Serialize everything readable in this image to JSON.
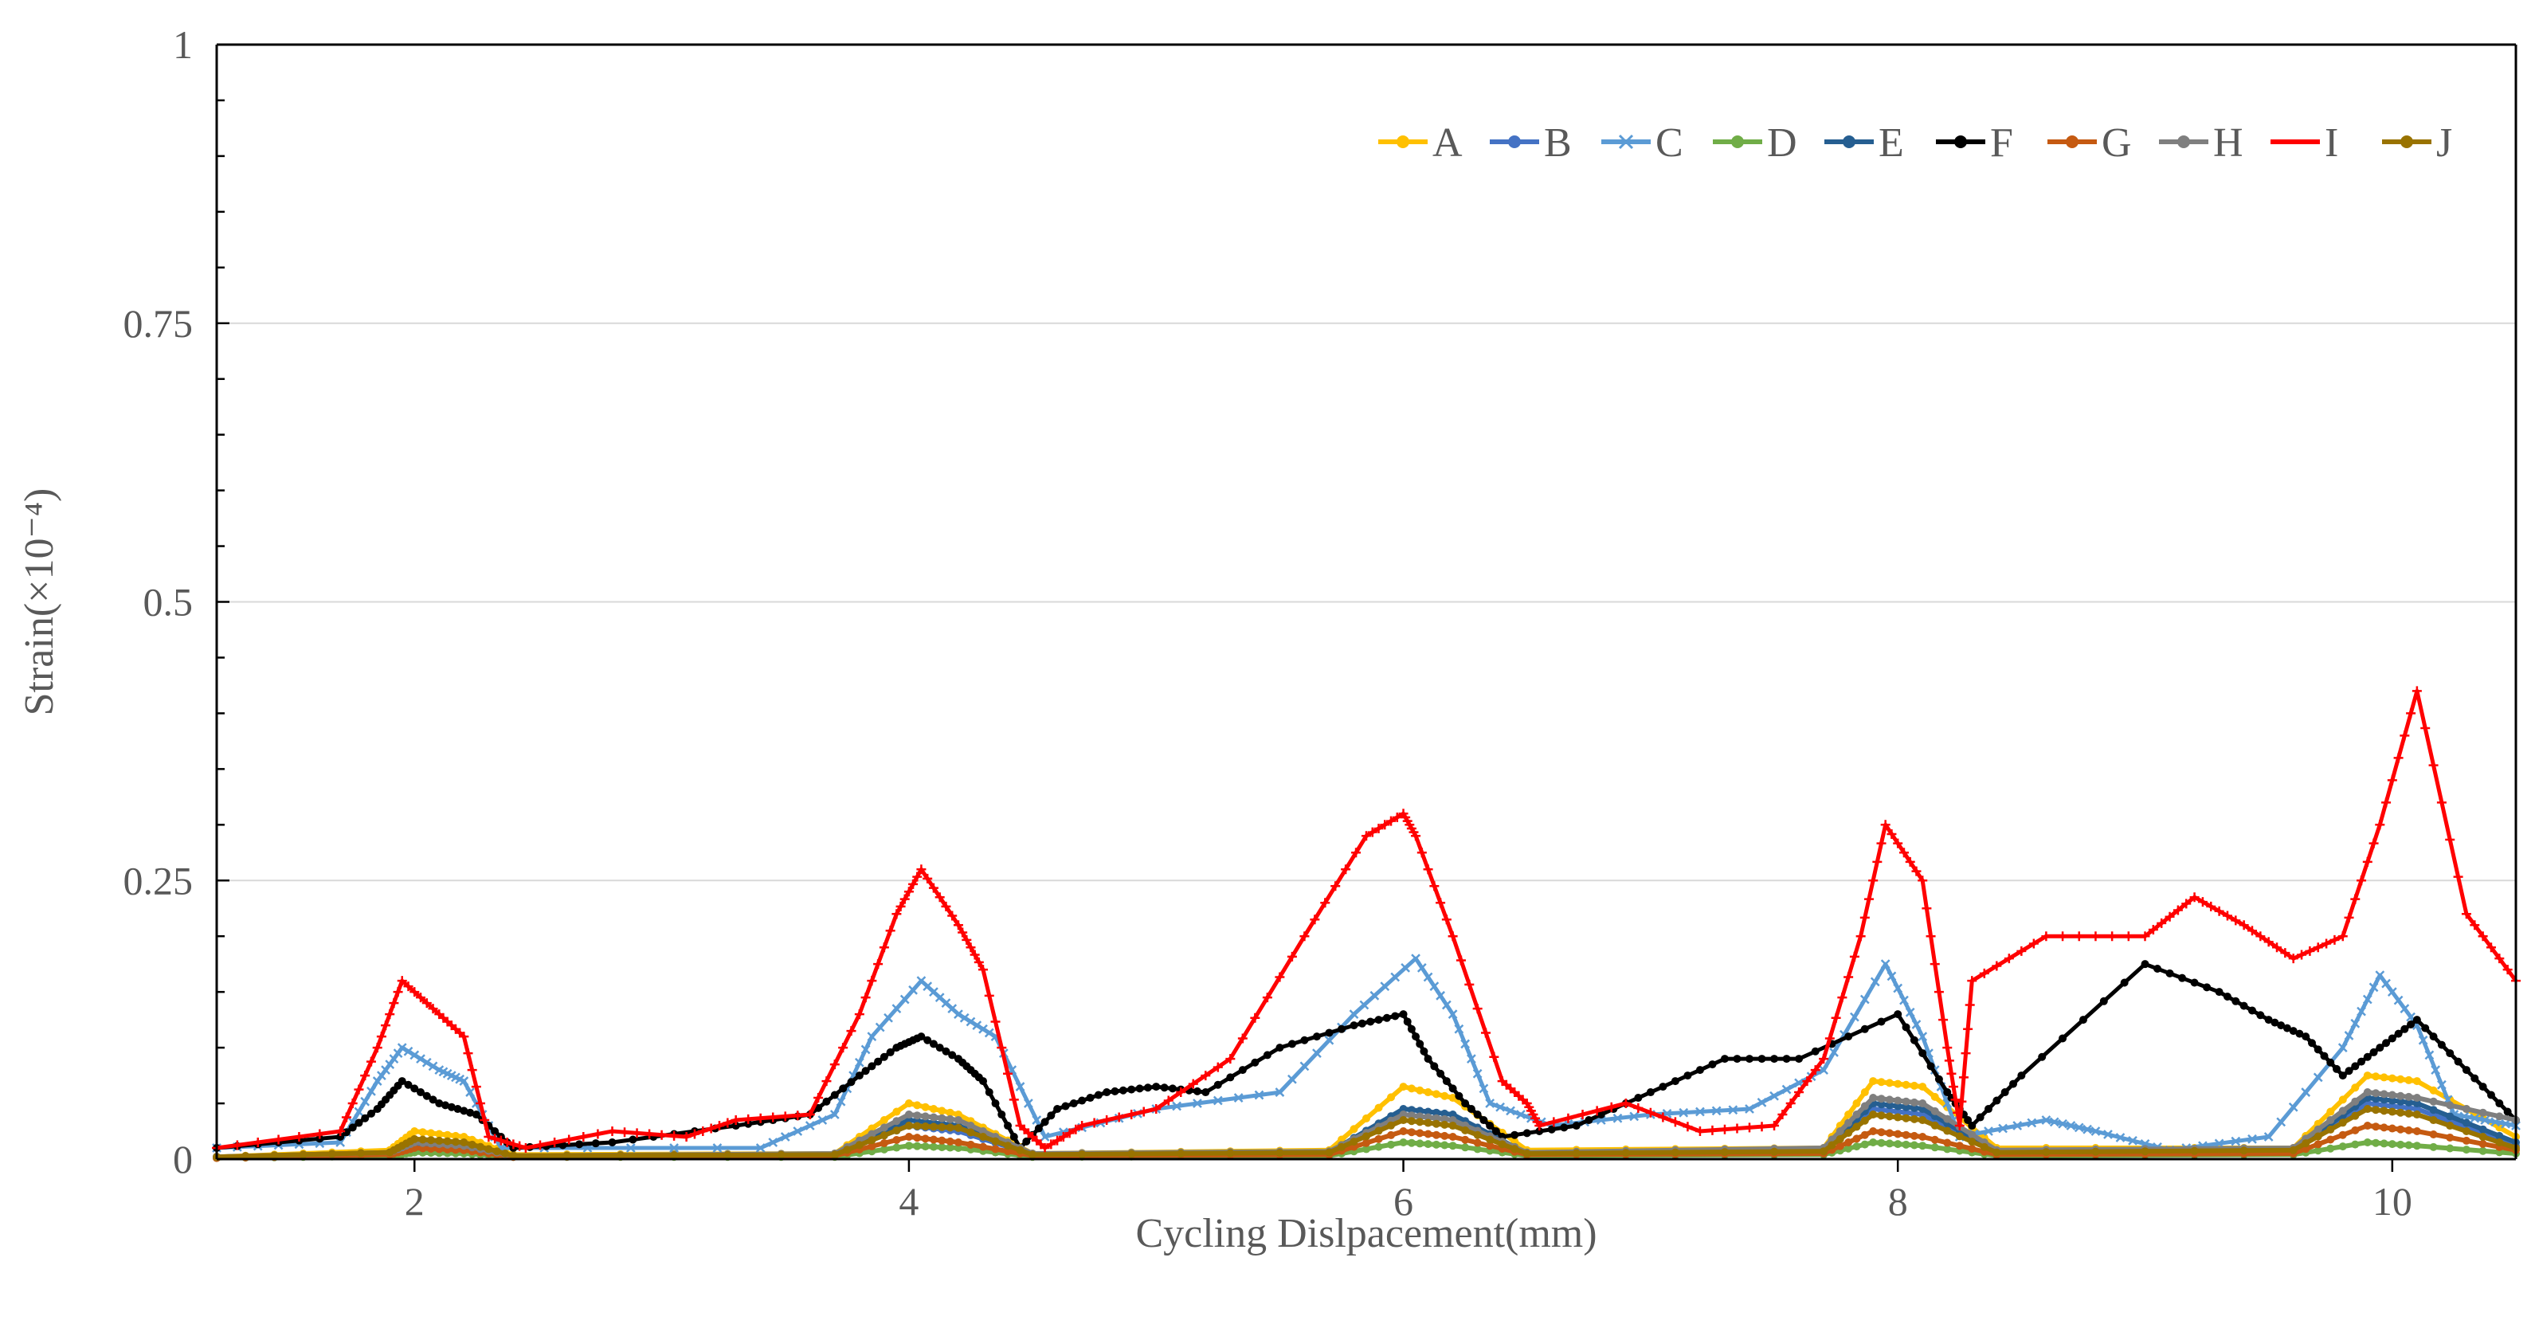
{
  "chart_data": {
    "type": "line",
    "title": "",
    "xlabel": "Cycling Dislpacement(mm)",
    "ylabel": "Strain(×10⁻⁴)",
    "xlim": [
      1.2,
      10.5
    ],
    "ylim": [
      0,
      1
    ],
    "x_ticks": [
      2,
      4,
      6,
      8,
      10
    ],
    "x_tick_labels": [
      "2",
      "4",
      "6",
      "8",
      "10"
    ],
    "y_ticks": [
      0,
      0.25,
      0.5,
      0.75,
      1
    ],
    "y_tick_labels": [
      "0",
      "0.25",
      "0.5",
      "0.75",
      "1"
    ],
    "grid": "horizontal",
    "legend_position": "top-right",
    "series": [
      {
        "name": "A",
        "color": "#FFC000",
        "marker": "circle",
        "x": [
          1.2,
          1.9,
          2.0,
          2.2,
          2.4,
          3.7,
          4.0,
          4.2,
          4.5,
          5.7,
          6.0,
          6.2,
          6.5,
          7.7,
          7.9,
          8.1,
          8.4,
          9.6,
          9.9,
          10.1,
          10.5
        ],
        "y": [
          0.002,
          0.008,
          0.025,
          0.02,
          0.004,
          0.005,
          0.05,
          0.04,
          0.005,
          0.008,
          0.065,
          0.055,
          0.008,
          0.01,
          0.07,
          0.065,
          0.01,
          0.01,
          0.075,
          0.07,
          0.02
        ]
      },
      {
        "name": "B",
        "color": "#4472C4",
        "marker": "circle",
        "x": [
          1.2,
          1.9,
          2.0,
          2.2,
          2.4,
          3.7,
          4.0,
          4.2,
          4.5,
          5.7,
          6.0,
          6.2,
          6.5,
          7.7,
          7.9,
          8.1,
          8.4,
          9.6,
          9.9,
          10.1,
          10.5
        ],
        "y": [
          0.002,
          0.005,
          0.012,
          0.01,
          0.003,
          0.004,
          0.03,
          0.025,
          0.004,
          0.006,
          0.04,
          0.035,
          0.005,
          0.008,
          0.045,
          0.04,
          0.006,
          0.008,
          0.05,
          0.045,
          0.012
        ]
      },
      {
        "name": "C",
        "color": "#5B9BD5",
        "marker": "x",
        "x": [
          1.2,
          1.7,
          1.85,
          1.95,
          2.1,
          2.2,
          2.35,
          3.4,
          3.7,
          3.85,
          4.05,
          4.2,
          4.35,
          4.55,
          5.0,
          5.5,
          5.8,
          6.05,
          6.2,
          6.35,
          6.6,
          7.0,
          7.4,
          7.7,
          7.95,
          8.1,
          8.25,
          8.6,
          8.8,
          9.1,
          9.5,
          9.8,
          9.95,
          10.1,
          10.25,
          10.5
        ],
        "y": [
          0.01,
          0.015,
          0.07,
          0.1,
          0.08,
          0.07,
          0.01,
          0.01,
          0.04,
          0.11,
          0.16,
          0.13,
          0.11,
          0.02,
          0.045,
          0.06,
          0.13,
          0.18,
          0.13,
          0.05,
          0.03,
          0.04,
          0.045,
          0.08,
          0.175,
          0.11,
          0.02,
          0.035,
          0.025,
          0.008,
          0.02,
          0.1,
          0.165,
          0.12,
          0.04,
          0.03
        ]
      },
      {
        "name": "D",
        "color": "#70AD47",
        "marker": "circle",
        "x": [
          1.2,
          1.9,
          2.0,
          2.2,
          2.4,
          3.7,
          4.0,
          4.2,
          4.5,
          5.7,
          6.0,
          6.2,
          6.5,
          7.7,
          7.9,
          8.1,
          8.4,
          9.6,
          9.9,
          10.1,
          10.5
        ],
        "y": [
          0.001,
          0.003,
          0.006,
          0.005,
          0.002,
          0.002,
          0.012,
          0.01,
          0.002,
          0.003,
          0.015,
          0.012,
          0.003,
          0.004,
          0.015,
          0.012,
          0.003,
          0.004,
          0.015,
          0.012,
          0.005
        ]
      },
      {
        "name": "E",
        "color": "#255E91",
        "marker": "circle",
        "x": [
          1.2,
          1.9,
          2.0,
          2.2,
          2.4,
          3.7,
          4.0,
          4.2,
          4.5,
          5.7,
          6.0,
          6.2,
          6.5,
          7.7,
          7.9,
          8.1,
          8.4,
          9.6,
          9.9,
          10.1,
          10.5
        ],
        "y": [
          0.002,
          0.006,
          0.015,
          0.012,
          0.003,
          0.004,
          0.035,
          0.03,
          0.004,
          0.006,
          0.045,
          0.04,
          0.005,
          0.008,
          0.05,
          0.045,
          0.006,
          0.008,
          0.055,
          0.05,
          0.015
        ]
      },
      {
        "name": "F",
        "color": "#000000",
        "marker": "circle",
        "x": [
          1.2,
          1.7,
          1.85,
          1.95,
          2.1,
          2.25,
          2.4,
          2.8,
          3.3,
          3.6,
          3.8,
          3.95,
          4.05,
          4.2,
          4.3,
          4.45,
          4.6,
          4.8,
          5.0,
          5.2,
          5.5,
          5.8,
          6.0,
          6.1,
          6.25,
          6.4,
          6.7,
          7.0,
          7.3,
          7.6,
          8.0,
          8.2,
          8.3,
          8.5,
          9.0,
          9.3,
          9.5,
          9.65,
          9.8,
          9.95,
          10.1,
          10.3,
          10.5
        ],
        "y": [
          0.01,
          0.02,
          0.045,
          0.07,
          0.05,
          0.04,
          0.01,
          0.015,
          0.03,
          0.04,
          0.075,
          0.1,
          0.11,
          0.09,
          0.07,
          0.01,
          0.045,
          0.06,
          0.065,
          0.06,
          0.1,
          0.12,
          0.13,
          0.09,
          0.05,
          0.02,
          0.03,
          0.06,
          0.09,
          0.09,
          0.13,
          0.06,
          0.03,
          0.075,
          0.175,
          0.15,
          0.125,
          0.11,
          0.075,
          0.1,
          0.125,
          0.08,
          0.035
        ]
      },
      {
        "name": "G",
        "color": "#C55A11",
        "marker": "circle",
        "x": [
          1.2,
          1.9,
          2.0,
          2.2,
          2.4,
          3.7,
          4.0,
          4.2,
          4.5,
          5.7,
          6.0,
          6.2,
          6.5,
          7.7,
          7.9,
          8.1,
          8.4,
          9.6,
          9.9,
          10.1,
          10.5
        ],
        "y": [
          0.001,
          0.004,
          0.01,
          0.008,
          0.002,
          0.003,
          0.02,
          0.015,
          0.003,
          0.004,
          0.025,
          0.02,
          0.004,
          0.005,
          0.025,
          0.02,
          0.004,
          0.005,
          0.03,
          0.025,
          0.008
        ]
      },
      {
        "name": "H",
        "color": "#7F7F7F",
        "marker": "circle",
        "x": [
          1.2,
          1.9,
          2.0,
          2.2,
          2.4,
          3.7,
          4.0,
          4.2,
          4.5,
          5.7,
          6.0,
          6.2,
          6.5,
          7.7,
          7.9,
          8.1,
          8.4,
          9.6,
          9.9,
          10.1,
          10.5
        ],
        "y": [
          0.002,
          0.006,
          0.015,
          0.012,
          0.003,
          0.005,
          0.04,
          0.035,
          0.005,
          0.007,
          0.04,
          0.035,
          0.006,
          0.01,
          0.055,
          0.05,
          0.008,
          0.01,
          0.06,
          0.055,
          0.035
        ]
      },
      {
        "name": "I",
        "color": "#FF0000",
        "marker": "plus",
        "x": [
          1.2,
          1.7,
          1.85,
          1.95,
          2.1,
          2.2,
          2.3,
          2.45,
          2.8,
          3.1,
          3.3,
          3.6,
          3.8,
          3.95,
          4.05,
          4.2,
          4.3,
          4.45,
          4.55,
          4.7,
          5.0,
          5.3,
          5.6,
          5.85,
          6.0,
          6.05,
          6.2,
          6.4,
          6.5,
          6.55,
          6.9,
          7.2,
          7.5,
          7.7,
          7.85,
          7.95,
          8.1,
          8.2,
          8.25,
          8.3,
          8.6,
          9.0,
          9.2,
          9.4,
          9.6,
          9.8,
          9.95,
          10.1,
          10.3,
          10.5
        ],
        "y": [
          0.01,
          0.025,
          0.1,
          0.16,
          0.13,
          0.11,
          0.02,
          0.01,
          0.025,
          0.02,
          0.035,
          0.04,
          0.13,
          0.22,
          0.26,
          0.21,
          0.17,
          0.03,
          0.01,
          0.03,
          0.045,
          0.09,
          0.2,
          0.29,
          0.31,
          0.29,
          0.2,
          0.07,
          0.05,
          0.03,
          0.05,
          0.025,
          0.03,
          0.09,
          0.2,
          0.3,
          0.25,
          0.1,
          0.03,
          0.16,
          0.2,
          0.2,
          0.235,
          0.21,
          0.18,
          0.2,
          0.3,
          0.42,
          0.22,
          0.16
        ]
      },
      {
        "name": "J",
        "color": "#997300",
        "marker": "circle",
        "x": [
          1.2,
          1.9,
          2.0,
          2.2,
          2.4,
          3.7,
          4.0,
          4.2,
          4.5,
          5.7,
          6.0,
          6.2,
          6.5,
          7.7,
          7.9,
          8.1,
          8.4,
          9.6,
          9.9,
          10.1,
          10.5
        ],
        "y": [
          0.002,
          0.006,
          0.018,
          0.015,
          0.003,
          0.004,
          0.03,
          0.028,
          0.004,
          0.006,
          0.035,
          0.03,
          0.005,
          0.007,
          0.04,
          0.035,
          0.006,
          0.008,
          0.045,
          0.04,
          0.01
        ]
      }
    ]
  }
}
